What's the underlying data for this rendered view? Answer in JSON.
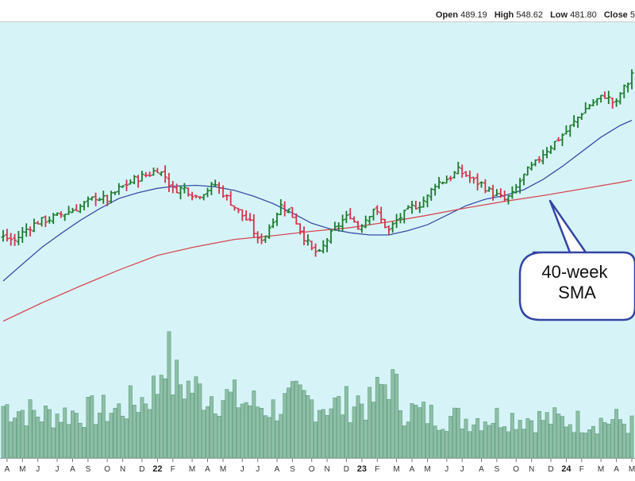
{
  "header": {
    "open_label": "Open",
    "open_value": "489.19",
    "high_label": "High",
    "high_value": "548.62",
    "low_label": "Low",
    "low_value": "481.80",
    "close_label": "Close",
    "close_value": "5"
  },
  "annotation": {
    "line1": "40-week",
    "line2": "SMA"
  },
  "chart_data": {
    "type": "line",
    "ylim": [
      150,
      560
    ],
    "xlim": [
      0,
      178
    ],
    "grid": false,
    "x_tick_labels": [
      {
        "week": 1,
        "label": "A"
      },
      {
        "week": 5,
        "label": "M"
      },
      {
        "week": 9,
        "label": "J"
      },
      {
        "week": 14,
        "label": "J"
      },
      {
        "week": 18,
        "label": "A"
      },
      {
        "week": 22,
        "label": "S"
      },
      {
        "week": 27,
        "label": "O"
      },
      {
        "week": 31,
        "label": "N"
      },
      {
        "week": 36,
        "label": "D"
      },
      {
        "week": 40,
        "label": "22",
        "year": true
      },
      {
        "week": 44,
        "label": "F"
      },
      {
        "week": 49,
        "label": "M"
      },
      {
        "week": 53,
        "label": "A"
      },
      {
        "week": 57,
        "label": "M"
      },
      {
        "week": 62,
        "label": "J"
      },
      {
        "week": 66,
        "label": "J"
      },
      {
        "week": 71,
        "label": "A"
      },
      {
        "week": 75,
        "label": "S"
      },
      {
        "week": 80,
        "label": "O"
      },
      {
        "week": 84,
        "label": "N"
      },
      {
        "week": 89,
        "label": "D"
      },
      {
        "week": 93,
        "label": "23",
        "year": true
      },
      {
        "week": 97,
        "label": "F"
      },
      {
        "week": 102,
        "label": "M"
      },
      {
        "week": 106,
        "label": "A"
      },
      {
        "week": 110,
        "label": "M"
      },
      {
        "week": 115,
        "label": "J"
      },
      {
        "week": 119,
        "label": "J"
      },
      {
        "week": 124,
        "label": "A"
      },
      {
        "week": 128,
        "label": "S"
      },
      {
        "week": 133,
        "label": "O"
      },
      {
        "week": 137,
        "label": "N"
      },
      {
        "week": 142,
        "label": "D"
      },
      {
        "week": 146,
        "label": "24",
        "year": true
      },
      {
        "week": 150,
        "label": "F"
      },
      {
        "week": 155,
        "label": "M"
      },
      {
        "week": 159,
        "label": "A"
      },
      {
        "week": 163,
        "label": "M"
      }
    ],
    "price_anchors": [
      [
        0,
        295
      ],
      [
        3,
        290
      ],
      [
        6,
        306
      ],
      [
        9,
        316
      ],
      [
        12,
        320
      ],
      [
        16,
        328
      ],
      [
        20,
        337
      ],
      [
        24,
        350
      ],
      [
        27,
        346
      ],
      [
        30,
        361
      ],
      [
        34,
        374
      ],
      [
        38,
        382
      ],
      [
        40,
        388
      ],
      [
        42,
        378
      ],
      [
        44,
        360
      ],
      [
        47,
        362
      ],
      [
        50,
        351
      ],
      [
        52,
        357
      ],
      [
        55,
        367
      ],
      [
        58,
        349
      ],
      [
        61,
        330
      ],
      [
        64,
        314
      ],
      [
        66,
        290
      ],
      [
        68,
        298
      ],
      [
        70,
        320
      ],
      [
        72,
        338
      ],
      [
        74,
        332
      ],
      [
        76,
        316
      ],
      [
        78,
        295
      ],
      [
        80,
        278
      ],
      [
        82,
        272
      ],
      [
        84,
        292
      ],
      [
        86,
        306
      ],
      [
        88,
        318
      ],
      [
        90,
        325
      ],
      [
        92,
        308
      ],
      [
        94,
        320
      ],
      [
        96,
        335
      ],
      [
        98,
        318
      ],
      [
        100,
        304
      ],
      [
        102,
        318
      ],
      [
        104,
        327
      ],
      [
        106,
        336
      ],
      [
        108,
        340
      ],
      [
        110,
        350
      ],
      [
        112,
        368
      ],
      [
        114,
        372
      ],
      [
        116,
        378
      ],
      [
        118,
        386
      ],
      [
        120,
        380
      ],
      [
        122,
        372
      ],
      [
        124,
        368
      ],
      [
        126,
        358
      ],
      [
        128,
        352
      ],
      [
        130,
        346
      ],
      [
        132,
        353
      ],
      [
        134,
        372
      ],
      [
        136,
        386
      ],
      [
        138,
        396
      ],
      [
        140,
        410
      ],
      [
        142,
        420
      ],
      [
        144,
        430
      ],
      [
        146,
        440
      ],
      [
        148,
        452
      ],
      [
        150,
        466
      ],
      [
        152,
        476
      ],
      [
        154,
        483
      ],
      [
        156,
        489
      ],
      [
        158,
        480
      ],
      [
        159,
        478
      ],
      [
        160,
        492
      ],
      [
        162,
        506
      ],
      [
        163,
        520
      ]
    ],
    "series": [
      {
        "name": "40-week SMA",
        "color": "#3b4fa8",
        "points": [
          [
            0,
            235
          ],
          [
            5,
            258
          ],
          [
            10,
            281
          ],
          [
            15,
            300
          ],
          [
            20,
            318
          ],
          [
            25,
            334
          ],
          [
            30,
            348
          ],
          [
            35,
            356
          ],
          [
            40,
            362
          ],
          [
            45,
            365
          ],
          [
            50,
            366
          ],
          [
            55,
            364
          ],
          [
            60,
            359
          ],
          [
            65,
            351
          ],
          [
            70,
            341
          ],
          [
            75,
            328
          ],
          [
            80,
            314
          ],
          [
            85,
            306
          ],
          [
            90,
            301
          ],
          [
            95,
            298
          ],
          [
            100,
            298
          ],
          [
            105,
            304
          ],
          [
            110,
            312
          ],
          [
            115,
            325
          ],
          [
            120,
            338
          ],
          [
            125,
            347
          ],
          [
            130,
            352
          ],
          [
            135,
            360
          ],
          [
            140,
            374
          ],
          [
            145,
            392
          ],
          [
            150,
            412
          ],
          [
            155,
            432
          ],
          [
            160,
            448
          ],
          [
            163,
            455
          ]
        ]
      },
      {
        "color": "#d94a55",
        "points": [
          [
            0,
            180
          ],
          [
            10,
            205
          ],
          [
            20,
            228
          ],
          [
            30,
            250
          ],
          [
            40,
            270
          ],
          [
            50,
            282
          ],
          [
            60,
            292
          ],
          [
            70,
            297
          ],
          [
            80,
            303
          ],
          [
            90,
            308
          ],
          [
            100,
            316
          ],
          [
            110,
            325
          ],
          [
            120,
            335
          ],
          [
            130,
            344
          ],
          [
            140,
            352
          ],
          [
            150,
            361
          ],
          [
            160,
            370
          ],
          [
            163,
            373
          ]
        ]
      }
    ],
    "volume_anchors": [
      [
        0,
        0.4
      ],
      [
        10,
        0.33
      ],
      [
        20,
        0.35
      ],
      [
        30,
        0.37
      ],
      [
        36,
        0.45
      ],
      [
        40,
        0.55
      ],
      [
        42,
        0.88
      ],
      [
        44,
        0.6
      ],
      [
        48,
        0.55
      ],
      [
        52,
        0.5
      ],
      [
        56,
        0.48
      ],
      [
        60,
        0.45
      ],
      [
        64,
        0.42
      ],
      [
        70,
        0.38
      ],
      [
        76,
        0.45
      ],
      [
        82,
        0.42
      ],
      [
        88,
        0.4
      ],
      [
        92,
        0.45
      ],
      [
        95,
        0.4
      ],
      [
        100,
        0.62
      ],
      [
        104,
        0.38
      ],
      [
        110,
        0.33
      ],
      [
        120,
        0.3
      ],
      [
        130,
        0.32
      ],
      [
        140,
        0.3
      ],
      [
        150,
        0.28
      ],
      [
        160,
        0.29
      ],
      [
        163,
        0.25
      ]
    ],
    "colors": {
      "plot_background": "#d6f4f7",
      "up_bar": "#1a7a2c",
      "down_bar": "#d3324a",
      "volume_fill": "#8ebfa6",
      "volume_stroke": "#5e9b80",
      "callout_border": "#3346a3"
    }
  }
}
